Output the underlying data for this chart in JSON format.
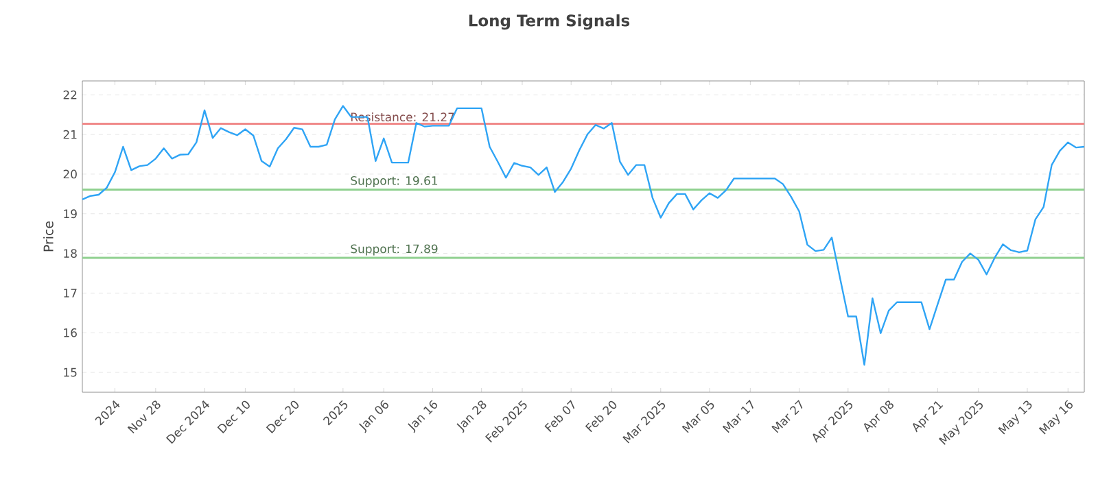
{
  "chart_data": {
    "type": "line",
    "title": "Long Term Signals",
    "ylabel": "Price",
    "categories": [
      null,
      null,
      null,
      null,
      "2024",
      null,
      null,
      null,
      null,
      "Nov 28",
      null,
      null,
      null,
      null,
      null,
      "Dec 2024",
      null,
      null,
      null,
      null,
      "Dec 10",
      null,
      null,
      null,
      null,
      null,
      "Dec 20",
      null,
      null,
      null,
      null,
      null,
      "2025",
      null,
      null,
      null,
      null,
      "Jan 06",
      null,
      null,
      null,
      null,
      null,
      "Jan 16",
      null,
      null,
      null,
      null,
      null,
      "Jan 28",
      null,
      null,
      null,
      null,
      "Feb 2025",
      null,
      null,
      null,
      null,
      null,
      "Feb 07",
      null,
      null,
      null,
      null,
      "Feb 20",
      null,
      null,
      null,
      null,
      null,
      "Mar 2025",
      null,
      null,
      null,
      null,
      null,
      "Mar 05",
      null,
      null,
      null,
      null,
      "Mar 17",
      null,
      null,
      null,
      null,
      null,
      "Mar 27",
      null,
      null,
      null,
      null,
      null,
      "Apr 2025",
      null,
      null,
      null,
      null,
      "Apr 08",
      null,
      null,
      null,
      null,
      null,
      "Apr 21",
      null,
      null,
      null,
      null,
      "May 2025",
      null,
      null,
      null,
      null,
      null,
      "May 13",
      null,
      null,
      null,
      null,
      "May 16",
      null,
      null
    ],
    "series": [
      {
        "color": "#2fa4f5",
        "values": [
          19.36,
          19.45,
          19.48,
          19.66,
          20.05,
          20.69,
          20.1,
          20.2,
          20.23,
          20.39,
          20.65,
          20.39,
          20.49,
          20.5,
          20.8,
          21.61,
          20.91,
          21.16,
          21.06,
          20.98,
          21.13,
          20.97,
          20.33,
          20.19,
          20.65,
          20.88,
          21.17,
          21.13,
          20.69,
          20.69,
          20.74,
          21.38,
          21.72,
          21.44,
          21.44,
          21.44,
          20.33,
          20.9,
          20.29,
          20.29,
          20.29,
          21.29,
          21.2,
          21.22,
          21.22,
          21.22,
          21.66,
          21.66,
          21.66,
          21.66,
          20.69,
          20.31,
          19.91,
          20.28,
          20.21,
          20.17,
          19.98,
          20.17,
          19.55,
          19.8,
          20.14,
          20.6,
          21.0,
          21.24,
          21.15,
          21.29,
          20.31,
          19.98,
          20.23,
          20.23,
          19.4,
          18.9,
          19.27,
          19.5,
          19.5,
          19.11,
          19.34,
          19.52,
          19.4,
          19.59,
          19.89,
          19.89,
          19.89,
          19.89,
          19.89,
          19.89,
          19.75,
          19.43,
          19.06,
          18.22,
          18.06,
          18.09,
          18.4,
          17.39,
          16.41,
          16.41,
          15.19,
          16.87,
          15.99,
          16.56,
          16.77,
          16.77,
          16.77,
          16.77,
          16.09,
          16.72,
          17.34,
          17.34,
          17.79,
          18.0,
          17.84,
          17.47,
          17.89,
          18.23,
          18.08,
          18.03,
          18.07,
          18.86,
          19.17,
          20.23,
          20.59,
          20.8,
          20.67,
          20.69
        ]
      }
    ],
    "ylim": [
      14.5,
      22.35
    ],
    "yticks": [
      15,
      16,
      17,
      18,
      19,
      20,
      21,
      22
    ],
    "grid": "y",
    "marker": "none",
    "line_style": "solid",
    "ref_lines": [
      {
        "axis": "y",
        "value": 21.27,
        "label": "Resistance: 21.27",
        "color": "#f08a8a"
      },
      {
        "axis": "y",
        "value": 19.61,
        "label": "Support: 19.61",
        "color": "#8fd08f"
      },
      {
        "axis": "y",
        "value": 17.89,
        "label": "Support: 17.89",
        "color": "#8fd08f"
      }
    ]
  }
}
